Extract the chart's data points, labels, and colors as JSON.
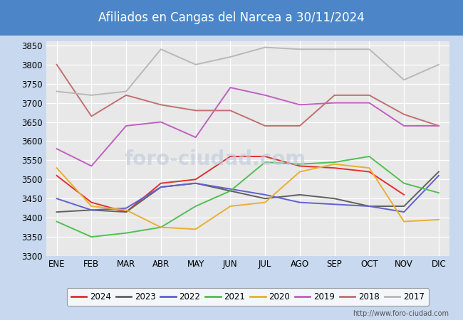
{
  "title": "Afiliados en Cangas del Narcea a 30/11/2024",
  "title_bg": "#4d86c8",
  "title_color": "white",
  "months": [
    "ENE",
    "FEB",
    "MAR",
    "ABR",
    "MAY",
    "JUN",
    "JUL",
    "AGO",
    "SEP",
    "OCT",
    "NOV",
    "DIC"
  ],
  "ylim": [
    3300,
    3860
  ],
  "yticks": [
    3300,
    3350,
    3400,
    3450,
    3500,
    3550,
    3600,
    3650,
    3700,
    3750,
    3800,
    3850
  ],
  "series": {
    "2024": {
      "color": "#e03030",
      "data": [
        3510,
        3440,
        3415,
        3490,
        3500,
        3560,
        3560,
        3535,
        3530,
        3520,
        3460,
        null
      ]
    },
    "2023": {
      "color": "#606060",
      "data": [
        3415,
        3420,
        3415,
        3480,
        3490,
        3470,
        3450,
        3460,
        3450,
        3430,
        3430,
        3520
      ]
    },
    "2022": {
      "color": "#6060d0",
      "data": [
        3450,
        3420,
        3425,
        3480,
        3490,
        3475,
        3460,
        3440,
        3435,
        3430,
        3415,
        3510
      ]
    },
    "2021": {
      "color": "#50c050",
      "data": [
        3390,
        3350,
        3360,
        3375,
        3430,
        3470,
        3545,
        3540,
        3545,
        3560,
        3490,
        3465
      ]
    },
    "2020": {
      "color": "#e8b030",
      "data": [
        3530,
        3430,
        3420,
        3375,
        3370,
        3430,
        3440,
        3520,
        3540,
        3530,
        3390,
        3395
      ]
    },
    "2019": {
      "color": "#c060c0",
      "data": [
        3580,
        3535,
        3640,
        3650,
        3610,
        3740,
        3720,
        3695,
        3700,
        3700,
        3640,
        3640
      ]
    },
    "2018": {
      "color": "#c07070",
      "data": [
        3800,
        3665,
        3720,
        3695,
        3680,
        3680,
        3640,
        3640,
        3720,
        3720,
        3670,
        3640
      ]
    },
    "2017": {
      "color": "#b8b8b8",
      "data": [
        3730,
        3720,
        3730,
        3840,
        3800,
        3820,
        3845,
        3840,
        3840,
        3840,
        3760,
        3800
      ]
    }
  },
  "legend_order": [
    "2024",
    "2023",
    "2022",
    "2021",
    "2020",
    "2019",
    "2018",
    "2017"
  ],
  "watermark": "http://www.foro-ciudad.com",
  "foro_watermark": "foro-ciudad.com",
  "plot_bg": "#e8e8e8",
  "fig_bg": "#c8d8ee"
}
